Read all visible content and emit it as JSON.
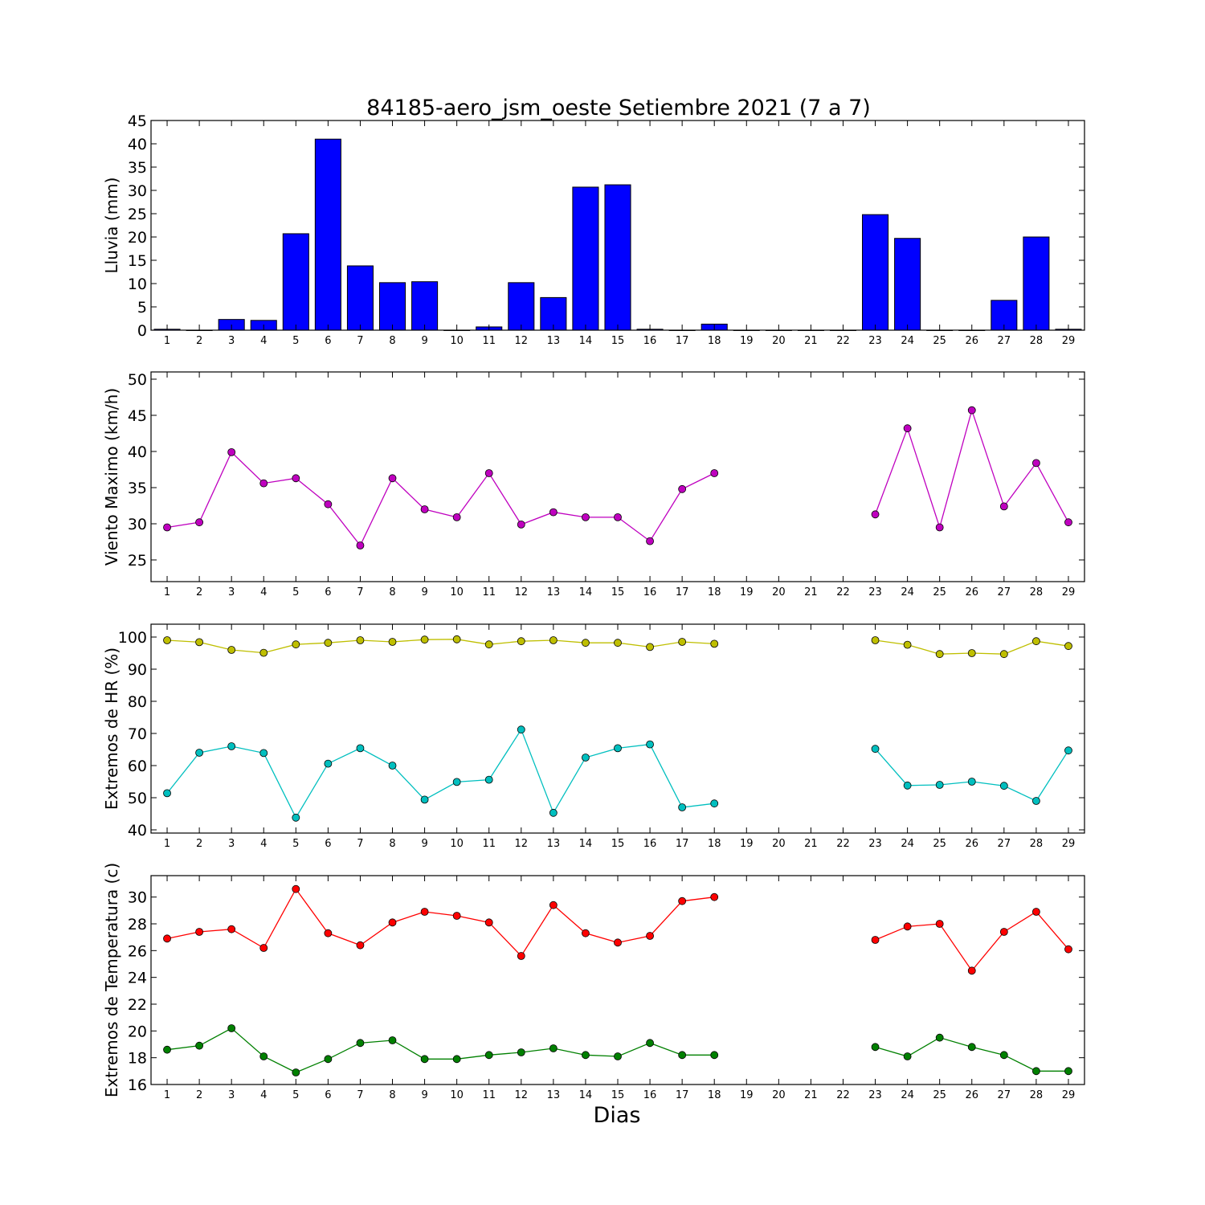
{
  "title": "84185-aero_jsm_oeste Setiembre 2021  (7 a 7)",
  "xlabel": "Dias",
  "days": [
    1,
    2,
    3,
    4,
    5,
    6,
    7,
    8,
    9,
    10,
    11,
    12,
    13,
    14,
    15,
    16,
    17,
    18,
    19,
    20,
    21,
    22,
    23,
    24,
    25,
    26,
    27,
    28,
    29
  ],
  "chart_data": [
    {
      "type": "bar",
      "ylabel": "Lluvia (mm)",
      "ylim": [
        0,
        45
      ],
      "yticks": [
        0,
        5,
        10,
        15,
        20,
        25,
        30,
        35,
        40,
        45
      ],
      "x": [
        1,
        2,
        3,
        4,
        5,
        6,
        7,
        8,
        9,
        10,
        11,
        12,
        13,
        14,
        15,
        16,
        17,
        18,
        19,
        20,
        21,
        22,
        23,
        24,
        25,
        26,
        27,
        28,
        29
      ],
      "series": [
        {
          "color": "#0000ff",
          "values": [
            0.2,
            0,
            2.3,
            2.1,
            20.7,
            41,
            13.8,
            10.2,
            10.4,
            0,
            0.7,
            10.2,
            7,
            30.7,
            31.2,
            0.2,
            0,
            1.3,
            0,
            0,
            0,
            0,
            24.8,
            19.7,
            0,
            0,
            6.4,
            20,
            0.2
          ]
        }
      ]
    },
    {
      "type": "line",
      "ylabel": "Viento Maximo (km/h)",
      "ylim": [
        22,
        51
      ],
      "yticks": [
        25,
        30,
        35,
        40,
        45,
        50
      ],
      "x": [
        1,
        2,
        3,
        4,
        5,
        6,
        7,
        8,
        9,
        10,
        11,
        12,
        13,
        14,
        15,
        16,
        17,
        18,
        19,
        20,
        21,
        22,
        23,
        24,
        25,
        26,
        27,
        28,
        29
      ],
      "series": [
        {
          "color": "#bf00bf",
          "values": [
            29.5,
            30.2,
            39.9,
            35.6,
            36.3,
            32.7,
            27,
            36.3,
            32,
            30.9,
            37,
            29.9,
            31.6,
            30.9,
            30.9,
            27.6,
            34.8,
            37,
            null,
            null,
            null,
            null,
            31.3,
            43.2,
            29.5,
            45.7,
            32.4,
            38.4,
            30.2
          ]
        }
      ]
    },
    {
      "type": "line",
      "ylabel": "Extremos de HR (%)",
      "ylim": [
        39,
        104
      ],
      "yticks": [
        40,
        50,
        60,
        70,
        80,
        90,
        100
      ],
      "x": [
        1,
        2,
        3,
        4,
        5,
        6,
        7,
        8,
        9,
        10,
        11,
        12,
        13,
        14,
        15,
        16,
        17,
        18,
        19,
        20,
        21,
        22,
        23,
        24,
        25,
        26,
        27,
        28,
        29
      ],
      "series": [
        {
          "color": "#bfbf00",
          "values": [
            99,
            98.4,
            96,
            95.1,
            97.7,
            98.2,
            99,
            98.5,
            99.2,
            99.3,
            97.7,
            98.7,
            99,
            98.2,
            98.2,
            96.9,
            98.5,
            97.9,
            null,
            null,
            null,
            null,
            99,
            97.6,
            94.7,
            95,
            94.7,
            98.7,
            97.2
          ]
        },
        {
          "color": "#00bfbf",
          "values": [
            51.4,
            64,
            66,
            63.9,
            43.8,
            60.6,
            65.4,
            60,
            49.4,
            54.9,
            55.6,
            71.2,
            45.3,
            62.5,
            65.4,
            66.6,
            47,
            48.2,
            null,
            null,
            null,
            null,
            65.2,
            53.8,
            54,
            55,
            53.7,
            49,
            64.7
          ]
        }
      ]
    },
    {
      "type": "line",
      "ylabel": "Extremos de Temperatura (c)",
      "ylim": [
        16,
        31.6
      ],
      "yticks": [
        16,
        18,
        20,
        22,
        24,
        26,
        28,
        30
      ],
      "x": [
        1,
        2,
        3,
        4,
        5,
        6,
        7,
        8,
        9,
        10,
        11,
        12,
        13,
        14,
        15,
        16,
        17,
        18,
        19,
        20,
        21,
        22,
        23,
        24,
        25,
        26,
        27,
        28,
        29
      ],
      "series": [
        {
          "color": "#ff0000",
          "values": [
            26.9,
            27.4,
            27.6,
            26.2,
            30.6,
            27.3,
            26.4,
            28.1,
            28.9,
            28.6,
            28.1,
            25.6,
            29.4,
            27.3,
            26.6,
            27.1,
            29.7,
            30,
            null,
            null,
            null,
            null,
            26.8,
            27.8,
            28,
            24.5,
            27.4,
            28.9,
            26.1
          ]
        },
        {
          "color": "#008000",
          "values": [
            18.6,
            18.9,
            20.2,
            18.1,
            16.9,
            17.9,
            19.1,
            19.3,
            17.9,
            17.9,
            18.2,
            18.4,
            18.7,
            18.2,
            18.1,
            19.1,
            18.2,
            18.2,
            null,
            null,
            null,
            null,
            18.8,
            18.1,
            19.5,
            18.8,
            18.2,
            17,
            17
          ]
        }
      ]
    }
  ]
}
